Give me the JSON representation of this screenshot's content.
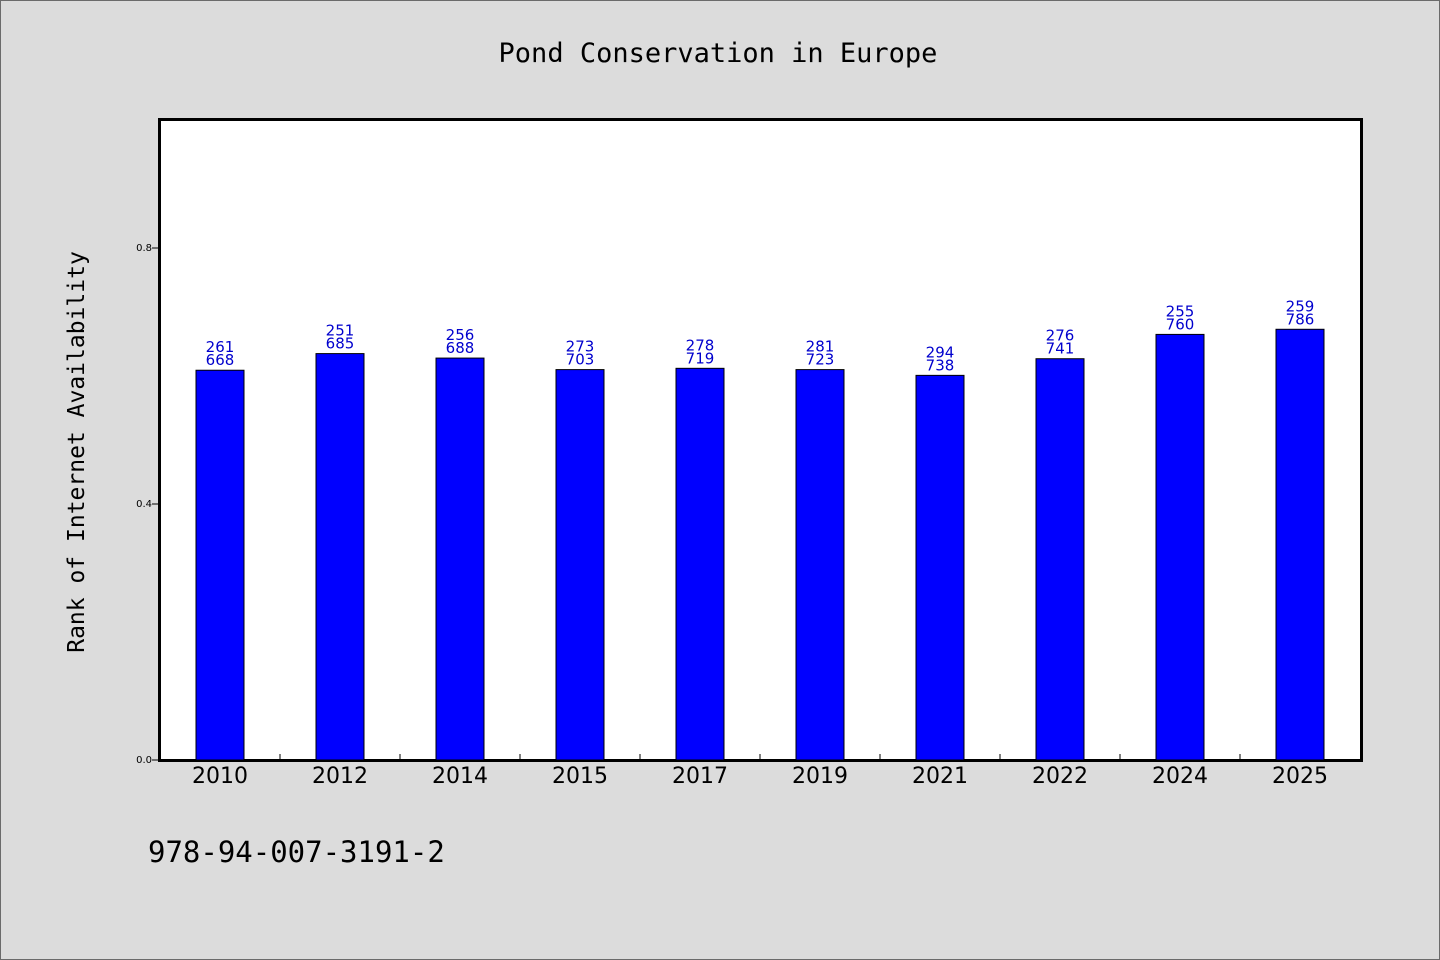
{
  "chart_data": {
    "type": "bar",
    "title": "Pond Conservation in Europe",
    "xlabel": "",
    "ylabel": "Rank of Internet Availability",
    "categories": [
      "2010",
      "2012",
      "2014",
      "2015",
      "2017",
      "2019",
      "2021",
      "2022",
      "2024",
      "2025"
    ],
    "values": [
      0.609,
      0.635,
      0.628,
      0.61,
      0.612,
      0.61,
      0.601,
      0.627,
      0.665,
      0.673
    ],
    "data_labels_top": [
      "261",
      "251",
      "256",
      "273",
      "278",
      "281",
      "294",
      "276",
      "255",
      "259"
    ],
    "data_labels_bottom": [
      "668",
      "685",
      "688",
      "703",
      "719",
      "723",
      "738",
      "741",
      "760",
      "786"
    ],
    "ylim": [
      0,
      1.0
    ],
    "yticks": [
      0.0,
      0.4,
      0.8
    ],
    "ytick_labels": [
      "0.0",
      "0.4",
      "0.8"
    ],
    "grid": false,
    "bar_color": "#0000ff",
    "label_color": "#0000cd"
  },
  "footer": {
    "isbn": "978-94-007-3191-2"
  }
}
